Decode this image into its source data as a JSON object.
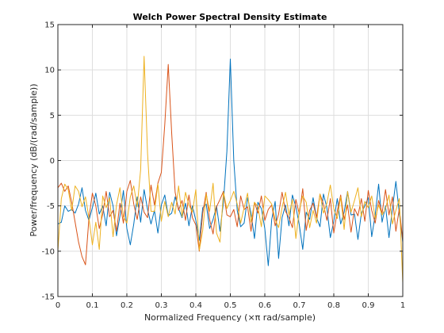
{
  "chart_data": {
    "type": "line",
    "title": "Welch Power Spectral Density Estimate",
    "xlabel": "Normalized Frequency  (×π rad/sample)",
    "ylabel": "Power/frequency (dB/(rad/sample))",
    "xlim": [
      0,
      1
    ],
    "ylim": [
      -15,
      15
    ],
    "xticks": [
      "0",
      "0.1",
      "0.2",
      "0.3",
      "0.4",
      "0.5",
      "0.6",
      "0.7",
      "0.8",
      "0.9",
      "1"
    ],
    "yticks": [
      "-15",
      "-10",
      "-5",
      "0",
      "5",
      "10",
      "15"
    ],
    "grid": true,
    "legend": "none",
    "colors": {
      "series1": "#0072bd",
      "series2": "#d95319",
      "series3": "#edb120",
      "axes": "#262626",
      "grid": "#dedede"
    },
    "series": [
      {
        "color": "#0072bd",
        "x": [
          0,
          0.01,
          0.02,
          0.03,
          0.04,
          0.05,
          0.06,
          0.07,
          0.08,
          0.09,
          0.1,
          0.11,
          0.12,
          0.13,
          0.14,
          0.15,
          0.16,
          0.17,
          0.18,
          0.19,
          0.2,
          0.21,
          0.22,
          0.23,
          0.24,
          0.25,
          0.26,
          0.27,
          0.28,
          0.29,
          0.3,
          0.31,
          0.32,
          0.33,
          0.34,
          0.35,
          0.36,
          0.37,
          0.38,
          0.39,
          0.4,
          0.41,
          0.42,
          0.43,
          0.44,
          0.45,
          0.46,
          0.47,
          0.48,
          0.49,
          0.5,
          0.51,
          0.52,
          0.53,
          0.54,
          0.55,
          0.56,
          0.57,
          0.58,
          0.59,
          0.6,
          0.61,
          0.62,
          0.63,
          0.64,
          0.65,
          0.66,
          0.67,
          0.68,
          0.69,
          0.7,
          0.71,
          0.72,
          0.73,
          0.74,
          0.75,
          0.76,
          0.77,
          0.78,
          0.79,
          0.8,
          0.81,
          0.82,
          0.83,
          0.84,
          0.85,
          0.86,
          0.87,
          0.88,
          0.89,
          0.9,
          0.91,
          0.92,
          0.93,
          0.94,
          0.95,
          0.96,
          0.97,
          0.98,
          0.99,
          1.0
        ],
        "y": [
          -7,
          -6.8,
          -5.0,
          -5.6,
          -5.4,
          -5.8,
          -4.8,
          -3.0,
          -5.5,
          -6.6,
          -5.2,
          -3.6,
          -5.9,
          -5.0,
          -7.2,
          -3.5,
          -5.0,
          -8.3,
          -6.1,
          -3.3,
          -7.5,
          -9.3,
          -7.0,
          -4.0,
          -6.8,
          -3.2,
          -5.4,
          -7.0,
          -5.5,
          -8.0,
          -4.9,
          -3.8,
          -6.1,
          -5.8,
          -4.0,
          -5.3,
          -6.3,
          -4.7,
          -7.2,
          -5.0,
          -6.6,
          -8.8,
          -5.2,
          -4.8,
          -7.5,
          -6.5,
          -5.0,
          -7.8,
          -4.6,
          1.0,
          11.2,
          0.0,
          -5.5,
          -7.3,
          -6.9,
          -4.1,
          -5.8,
          -8.6,
          -4.6,
          -5.3,
          -7.5,
          -11.6,
          -6.5,
          -4.5,
          -10.8,
          -6.3,
          -4.9,
          -7.2,
          -3.8,
          -5.1,
          -7.1,
          -9.8,
          -5.7,
          -6.5,
          -4.1,
          -6.3,
          -7.3,
          -3.7,
          -5.2,
          -8.5,
          -6.7,
          -4.2,
          -7.0,
          -5.7,
          -3.4,
          -6.0,
          -5.9,
          -8.7,
          -5.8,
          -5.0,
          -4.1,
          -8.4,
          -6.0,
          -2.6,
          -6.8,
          -5.0,
          -8.5,
          -5.3,
          -2.3,
          -5.8,
          -9.0
        ]
      },
      {
        "color": "#d95319",
        "x": [
          0,
          0.01,
          0.02,
          0.03,
          0.04,
          0.05,
          0.06,
          0.07,
          0.08,
          0.09,
          0.1,
          0.11,
          0.12,
          0.13,
          0.14,
          0.15,
          0.16,
          0.17,
          0.18,
          0.19,
          0.2,
          0.21,
          0.22,
          0.23,
          0.24,
          0.25,
          0.26,
          0.27,
          0.28,
          0.29,
          0.3,
          0.31,
          0.32,
          0.33,
          0.34,
          0.35,
          0.36,
          0.37,
          0.38,
          0.39,
          0.4,
          0.41,
          0.42,
          0.43,
          0.44,
          0.45,
          0.46,
          0.47,
          0.48,
          0.49,
          0.5,
          0.51,
          0.52,
          0.53,
          0.54,
          0.55,
          0.56,
          0.57,
          0.58,
          0.59,
          0.6,
          0.61,
          0.62,
          0.63,
          0.64,
          0.65,
          0.66,
          0.67,
          0.68,
          0.69,
          0.7,
          0.71,
          0.72,
          0.73,
          0.74,
          0.75,
          0.76,
          0.77,
          0.78,
          0.79,
          0.8,
          0.81,
          0.82,
          0.83,
          0.84,
          0.85,
          0.86,
          0.87,
          0.88,
          0.89,
          0.9,
          0.91,
          0.92,
          0.93,
          0.94,
          0.95,
          0.96,
          0.97,
          0.98,
          0.99,
          1.0
        ],
        "y": [
          -3.0,
          -2.5,
          -3.4,
          -2.8,
          -4.6,
          -6.8,
          -9.0,
          -10.6,
          -11.5,
          -6.4,
          -3.6,
          -5.0,
          -7.5,
          -5.9,
          -3.4,
          -6.2,
          -5.5,
          -7.8,
          -4.7,
          -6.9,
          -3.4,
          -2.2,
          -4.8,
          -6.5,
          -4.0,
          -5.7,
          -6.3,
          -2.7,
          -4.9,
          -2.5,
          -1.3,
          4.0,
          10.6,
          3.0,
          -3.5,
          -5.5,
          -4.4,
          -6.6,
          -3.8,
          -6.3,
          -7.1,
          -10.0,
          -5.8,
          -3.5,
          -6.5,
          -8.1,
          -5.1,
          -4.3,
          -3.4,
          -6.0,
          -6.2,
          -5.4,
          -7.3,
          -3.9,
          -5.4,
          -5.1,
          -7.8,
          -4.6,
          -5.8,
          -3.9,
          -6.6,
          -5.4,
          -4.9,
          -7.2,
          -5.9,
          -3.5,
          -5.6,
          -6.3,
          -7.4,
          -4.3,
          -5.9,
          -3.1,
          -7.7,
          -5.5,
          -4.7,
          -6.3,
          -3.7,
          -4.8,
          -6.6,
          -4.2,
          -8.0,
          -5.6,
          -3.8,
          -6.5,
          -4.9,
          -7.9,
          -5.3,
          -6.1,
          -4.2,
          -6.7,
          -3.3,
          -5.5,
          -6.9,
          -4.4,
          -5.8,
          -3.2,
          -6.0,
          -4.0,
          -7.8,
          -5.3,
          -8.8
        ]
      },
      {
        "color": "#edb120",
        "x": [
          0,
          0.01,
          0.02,
          0.03,
          0.04,
          0.05,
          0.06,
          0.07,
          0.08,
          0.09,
          0.1,
          0.11,
          0.12,
          0.13,
          0.14,
          0.15,
          0.16,
          0.17,
          0.18,
          0.19,
          0.2,
          0.21,
          0.22,
          0.23,
          0.24,
          0.25,
          0.26,
          0.27,
          0.28,
          0.29,
          0.3,
          0.31,
          0.32,
          0.33,
          0.34,
          0.35,
          0.36,
          0.37,
          0.38,
          0.39,
          0.4,
          0.41,
          0.42,
          0.43,
          0.44,
          0.45,
          0.46,
          0.47,
          0.48,
          0.49,
          0.5,
          0.51,
          0.52,
          0.53,
          0.54,
          0.55,
          0.56,
          0.57,
          0.58,
          0.59,
          0.6,
          0.61,
          0.62,
          0.63,
          0.64,
          0.65,
          0.66,
          0.67,
          0.68,
          0.69,
          0.7,
          0.71,
          0.72,
          0.73,
          0.74,
          0.75,
          0.76,
          0.77,
          0.78,
          0.79,
          0.8,
          0.81,
          0.82,
          0.83,
          0.84,
          0.85,
          0.86,
          0.87,
          0.88,
          0.89,
          0.9,
          0.91,
          0.92,
          0.93,
          0.94,
          0.95,
          0.96,
          0.97,
          0.98,
          0.99,
          1.0
        ],
        "y": [
          -10.0,
          -4.2,
          -2.6,
          -3.2,
          -5.5,
          -2.8,
          -3.4,
          -5.1,
          -4.0,
          -6.3,
          -9.3,
          -6.8,
          -9.8,
          -3.9,
          -5.2,
          -4.1,
          -8.4,
          -4.9,
          -3.0,
          -6.2,
          -6.9,
          -4.0,
          -2.8,
          -5.1,
          -1.0,
          11.5,
          0.8,
          -5.6,
          -5.6,
          -2.6,
          -6.7,
          -4.5,
          -6.2,
          -4.6,
          -5.9,
          -2.8,
          -6.2,
          -3.5,
          -4.9,
          -5.7,
          -3.2,
          -9.9,
          -7.7,
          -3.7,
          -5.6,
          -2.5,
          -8.0,
          -9.0,
          -3.5,
          -5.3,
          -4.4,
          -3.4,
          -4.8,
          -6.9,
          -5.2,
          -3.6,
          -6.8,
          -4.6,
          -5.1,
          -7.3,
          -3.9,
          -4.3,
          -4.8,
          -6.5,
          -7.4,
          -5.2,
          -3.5,
          -6.0,
          -4.3,
          -8.6,
          -5.5,
          -3.9,
          -4.6,
          -7.4,
          -5.5,
          -6.9,
          -3.7,
          -5.8,
          -4.7,
          -2.7,
          -5.3,
          -6.4,
          -4.0,
          -7.6,
          -3.4,
          -5.7,
          -4.4,
          -3.0,
          -6.2,
          -4.5,
          -5.2,
          -3.9,
          -6.4,
          -4.9,
          -6.0,
          -5.3,
          -3.8,
          -7.0,
          -5.5,
          -4.2,
          -13.5
        ]
      }
    ]
  }
}
